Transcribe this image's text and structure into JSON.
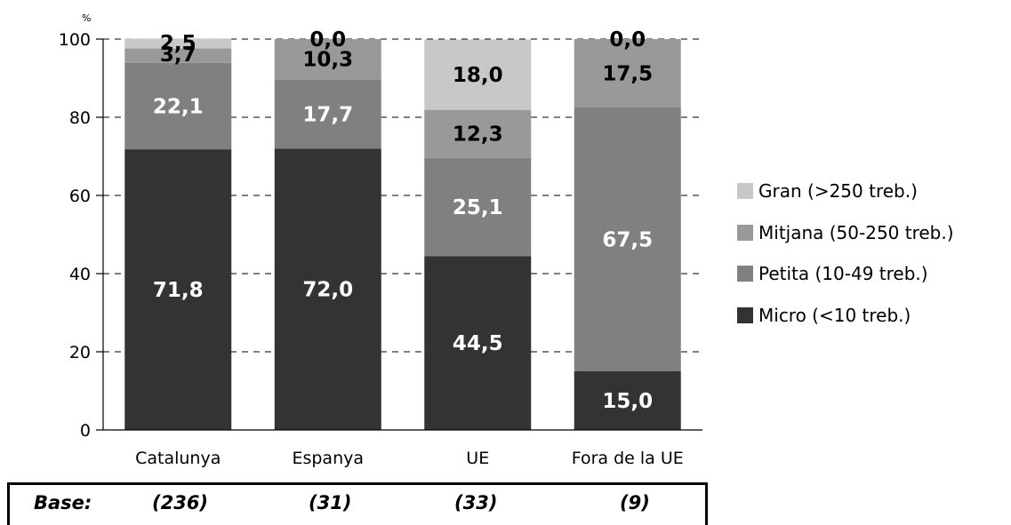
{
  "chart_data": {
    "type": "bar",
    "stacked": true,
    "unit_label": "%",
    "categories": [
      "Catalunya",
      "Espanya",
      "UE",
      "Fora de la UE"
    ],
    "series": [
      {
        "name": "Micro (<10 treb.)",
        "values": [
          71.8,
          72.0,
          44.5,
          15.0
        ],
        "labels": [
          "71,8",
          "72,0",
          "44,5",
          "15,0"
        ],
        "color": "#333333",
        "label_color": "#ffffff"
      },
      {
        "name": "Petita (10-49 treb.)",
        "values": [
          22.1,
          17.7,
          25.1,
          67.5
        ],
        "labels": [
          "22,1",
          "17,7",
          "25,1",
          "67,5"
        ],
        "color": "#808080",
        "label_color": "#ffffff"
      },
      {
        "name": "Mitjana (50-250 treb.)",
        "values": [
          3.7,
          10.3,
          12.3,
          17.5
        ],
        "labels": [
          "3,7",
          "10,3",
          "12,3",
          "17,5"
        ],
        "color": "#999999",
        "label_color": "#000000"
      },
      {
        "name": "Gran (>250 treb.)",
        "values": [
          2.5,
          0.0,
          18.0,
          0.0
        ],
        "labels": [
          "2,5",
          "0,0",
          "18,0",
          "0,0"
        ],
        "color": "#c8c8c8",
        "label_color": "#000000"
      }
    ],
    "ylim": [
      0,
      100
    ],
    "yticks": [
      0,
      20,
      40,
      60,
      80,
      100
    ],
    "grid": "dashed horizontal",
    "legend_position": "right"
  },
  "base": {
    "label": "Base:",
    "values": [
      "(236)",
      "(31)",
      "(33)",
      "(9)"
    ]
  }
}
